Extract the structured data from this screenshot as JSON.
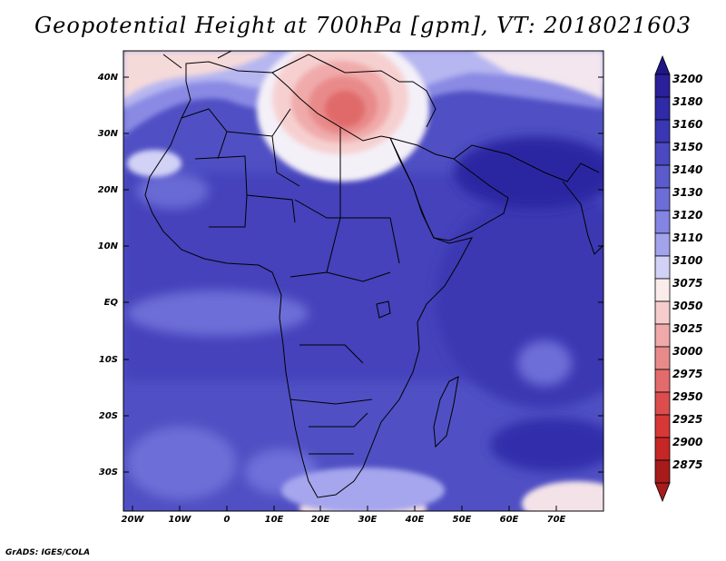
{
  "title": "Geopotential Height at 700hPa [gpm], VT: 2018021603",
  "credit": "GrADS: IGES/COLA",
  "map": {
    "lat_labels": [
      "40N",
      "30N",
      "20N",
      "10N",
      "EQ",
      "10S",
      "20S",
      "30S"
    ],
    "lon_labels": [
      "20W",
      "10W",
      "0",
      "10E",
      "20E",
      "30E",
      "40E",
      "50E",
      "60E",
      "70E"
    ]
  },
  "colorbar": {
    "levels": [
      "3200",
      "3180",
      "3160",
      "3150",
      "3140",
      "3130",
      "3120",
      "3110",
      "3100",
      "3075",
      "3050",
      "3025",
      "3000",
      "2975",
      "2950",
      "2925",
      "2900",
      "2875"
    ],
    "colors": [
      "#2b1f9a",
      "#2f2aa6",
      "#3a37b3",
      "#4a49c0",
      "#5b5bcc",
      "#6d6dd8",
      "#8484e2",
      "#a3a3ec",
      "#d2d2f7",
      "#fbecec",
      "#f6cccc",
      "#f0a9a9",
      "#e98a8a",
      "#e46b6b",
      "#dd4d4d",
      "#d83737",
      "#c72626",
      "#a71b1b"
    ],
    "top_color": "#1f1785",
    "bottom_color": "#a71b1b"
  }
}
